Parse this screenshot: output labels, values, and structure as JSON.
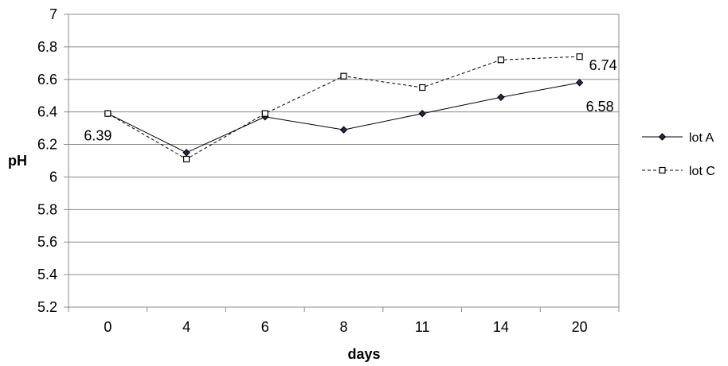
{
  "chart_data": {
    "type": "line",
    "categories": [
      "0",
      "4",
      "6",
      "8",
      "11",
      "14",
      "20"
    ],
    "xlabel": "days",
    "ylabel": "pH",
    "ylim": [
      5.2,
      7
    ],
    "yticks": [
      "5.2",
      "5.4",
      "5.6",
      "5.8",
      "6",
      "6.2",
      "6.4",
      "6.6",
      "6.8",
      "7"
    ],
    "grid": "horizontal",
    "legend_position": "right",
    "series": [
      {
        "name": "lot A",
        "values": [
          6.39,
          6.15,
          6.37,
          6.29,
          6.39,
          6.49,
          6.58
        ],
        "color": "#000000",
        "line_style": "solid",
        "marker": "diamond"
      },
      {
        "name": "lot C",
        "values": [
          6.39,
          6.11,
          6.39,
          6.62,
          6.55,
          6.72,
          6.74
        ],
        "color": "#000000",
        "line_style": "dashed",
        "marker": "square-open"
      }
    ],
    "annotations": [
      {
        "series": 0,
        "index": 0,
        "text": "6.39"
      },
      {
        "series": 0,
        "index": 6,
        "text": "6.58"
      },
      {
        "series": 1,
        "index": 6,
        "text": "6.74"
      }
    ]
  }
}
